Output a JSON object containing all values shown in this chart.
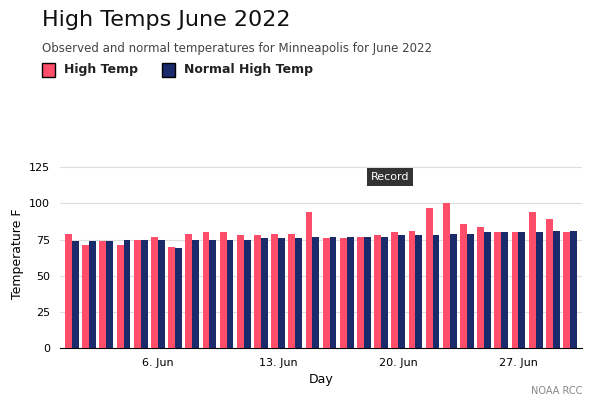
{
  "title": "High Temps June 2022",
  "subtitle": "Observed and normal temperatures for Minneapolis for June 2022",
  "xlabel": "Day",
  "ylabel": "Temperature F",
  "source": "NOAA RCC",
  "high_temps": [
    79,
    71,
    74,
    71,
    75,
    77,
    70,
    79,
    80,
    80,
    78,
    78,
    79,
    79,
    94,
    76,
    76,
    77,
    78,
    80,
    81,
    97,
    100,
    86,
    84,
    80,
    80,
    94,
    89,
    80
  ],
  "normal_high_temps": [
    74,
    74,
    74,
    75,
    75,
    75,
    69,
    75,
    75,
    75,
    75,
    76,
    76,
    76,
    77,
    77,
    77,
    77,
    77,
    78,
    78,
    78,
    79,
    79,
    80,
    80,
    80,
    80,
    81,
    81
  ],
  "high_temp_color": "#FF4D6A",
  "normal_high_color": "#1B2A6B",
  "ylim": [
    0,
    130
  ],
  "yticks": [
    0,
    25,
    50,
    75,
    100,
    125
  ],
  "record_day": 23,
  "record_label": "Record",
  "record_box_color": "#333333",
  "record_text_color": "#ffffff",
  "background_color": "#ffffff",
  "grid_color": "#dddddd",
  "legend_fontsize": 9,
  "title_fontsize": 16,
  "subtitle_fontsize": 8.5,
  "axis_label_fontsize": 9,
  "tick_fontsize": 8,
  "source_fontsize": 7
}
